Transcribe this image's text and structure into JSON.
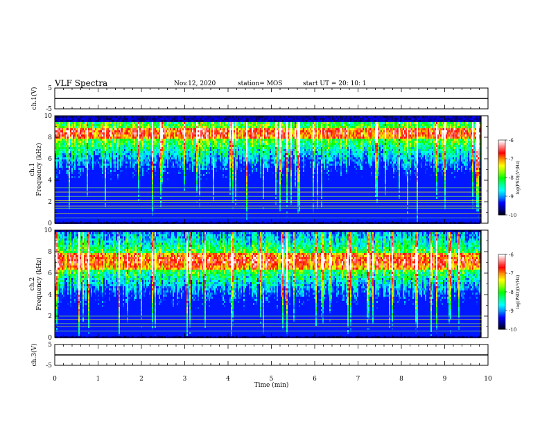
{
  "header": {
    "title": "VLF Spectra",
    "date": "Nov.12, 2020",
    "station": "station= MOS",
    "start_ut": "start  UT =   20: 10: 1"
  },
  "chart_data": [
    {
      "type": "line",
      "panel": "waveform-ch1",
      "ylabel": "ch.1(V)",
      "ylim": [
        -5,
        5
      ],
      "yticks": [
        -5,
        5
      ],
      "x": [
        0,
        10
      ],
      "values": [
        0,
        0
      ]
    },
    {
      "type": "heatmap",
      "panel": "spectrogram-ch1",
      "ylabel": "ch.1\nFrequency (kHz)",
      "ylim": [
        0,
        10
      ],
      "yticks": [
        0,
        2,
        4,
        6,
        8,
        10
      ],
      "xlim": [
        0,
        10
      ],
      "data_end_min": 9.85,
      "band_kHz": [
        0.3,
        9.6
      ],
      "peak_band_kHz": [
        8.0,
        9.0
      ],
      "interference_lines_kHz": [
        0.5,
        0.9,
        1.4,
        1.6,
        1.9,
        2.1,
        2.5,
        2.9,
        3.3
      ],
      "colorbar": {
        "label": "log(PSD)(V²/Hz)",
        "ticks": [
          -6,
          -7,
          -8,
          -9,
          -10
        ],
        "range": [
          -10,
          -6
        ]
      }
    },
    {
      "type": "heatmap",
      "panel": "spectrogram-ch2",
      "ylabel": "ch.2\nFrequency (kHz)",
      "ylim": [
        0,
        10
      ],
      "yticks": [
        0,
        2,
        4,
        6,
        8,
        10
      ],
      "xlim": [
        0,
        10
      ],
      "data_end_min": 9.85,
      "band_kHz": [
        0.2,
        9.9
      ],
      "peak_band_kHz": [
        6.5,
        8.0
      ],
      "interference_lines_kHz": [
        0.6,
        1.0,
        1.3,
        1.7,
        2.0
      ],
      "colorbar": {
        "label": "log(PSD)(V²/Hz)",
        "ticks": [
          -6,
          -7,
          -8,
          -9,
          -10
        ],
        "range": [
          -10,
          -6
        ]
      }
    },
    {
      "type": "line",
      "panel": "waveform-ch3",
      "ylabel": "ch.3(V)",
      "ylim": [
        -5,
        5
      ],
      "yticks": [
        -5,
        5
      ],
      "x": [
        0,
        10
      ],
      "values": [
        0,
        0
      ]
    }
  ],
  "x_axis": {
    "label": "Time (min)",
    "ticks": [
      "0",
      "1",
      "2",
      "3",
      "4",
      "5",
      "6",
      "7",
      "8",
      "9",
      "10"
    ]
  },
  "colors": {
    "colormap": [
      "#000000",
      "#000090",
      "#0000ff",
      "#0090ff",
      "#00ffff",
      "#00ff90",
      "#00ff00",
      "#90ff00",
      "#ffff00",
      "#ff9000",
      "#ff0000",
      "#ff8080",
      "#ffffff"
    ]
  }
}
